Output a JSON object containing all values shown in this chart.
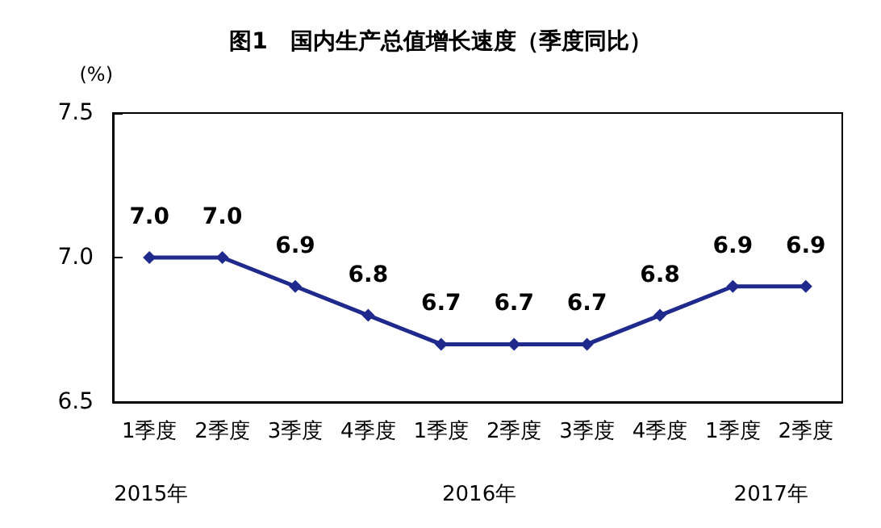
{
  "chart_data": {
    "type": "line",
    "title": "图1　国内生产总值增长速度（季度同比）",
    "ylabel": "(%)",
    "categories": [
      "1季度",
      "2季度",
      "3季度",
      "4季度",
      "1季度",
      "2季度",
      "3季度",
      "4季度",
      "1季度",
      "2季度"
    ],
    "series": [
      {
        "color": "#1f2a8c",
        "values": [
          7.0,
          7.0,
          6.9,
          6.8,
          6.7,
          6.7,
          6.7,
          6.8,
          6.9,
          6.9
        ],
        "value_labels": [
          "7.0",
          "7.0",
          "6.9",
          "6.8",
          "6.7",
          "6.7",
          "6.7",
          "6.8",
          "6.9",
          "6.9"
        ]
      }
    ],
    "ylim": [
      6.5,
      7.5
    ],
    "yticks": [
      {
        "value": 6.5,
        "label": "6.5"
      },
      {
        "value": 7,
        "label": "7.0"
      },
      {
        "value": 7.5,
        "label": "7.5"
      }
    ],
    "annotations": [
      "2015年",
      "2016年",
      "2017年"
    ],
    "marker": "diamond",
    "line_style": "solid",
    "grid": false
  }
}
